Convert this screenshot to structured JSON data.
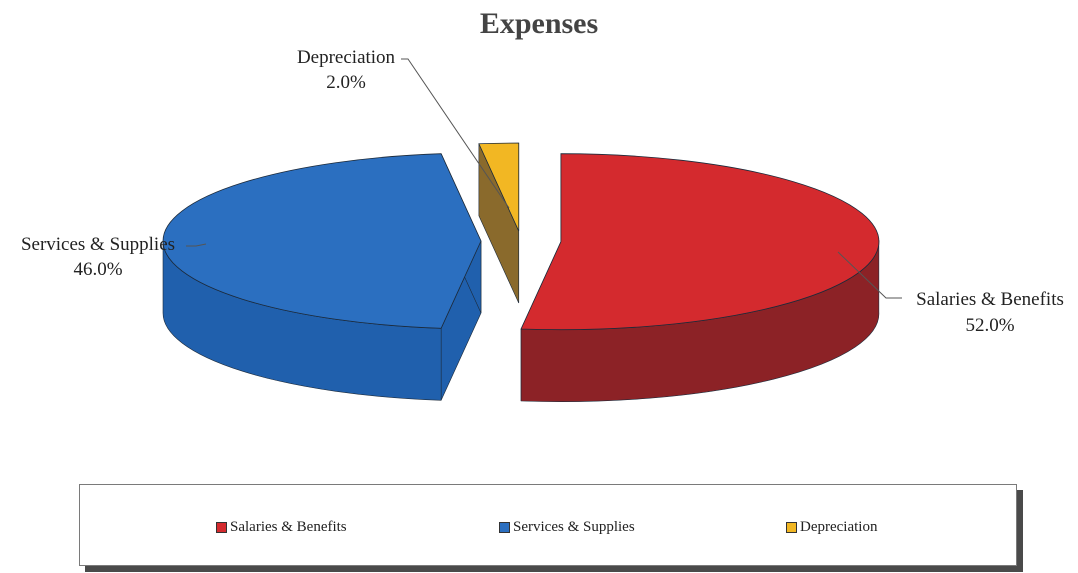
{
  "chart_data": {
    "type": "pie",
    "title": "Expenses",
    "three_d": true,
    "exploded": true,
    "slices": [
      {
        "label": "Salaries & Benefits",
        "value": 52.0,
        "value_text": "52.0%",
        "color": "#d42a2e",
        "side_color": "#8c2226"
      },
      {
        "label": "Services & Supplies",
        "value": 46.0,
        "value_text": "46.0%",
        "color": "#2b6fc0",
        "side_color": "#2060ad"
      },
      {
        "label": "Depreciation",
        "value": 2.0,
        "value_text": "2.0%",
        "color": "#f2b723",
        "side_color": "#8a6a2c"
      }
    ],
    "legend": {
      "placement": "bottom",
      "entries": [
        "Salaries & Benefits",
        "Services & Supplies",
        "Depreciation"
      ]
    }
  }
}
